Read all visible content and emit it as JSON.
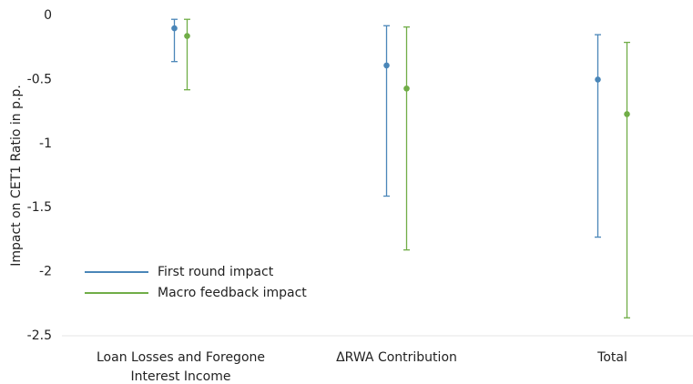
{
  "chart_data": {
    "type": "errorbar",
    "y_label": "Impact on CET1 Ratio in p.p.",
    "categories": [
      "Loan Losses and Foregone Interest Income",
      "ΔRWA Contribution",
      "Total"
    ],
    "series": [
      {
        "name": "First round impact",
        "color": "#4a86b8",
        "values": [
          -0.1,
          -0.39,
          -0.5
        ],
        "low": [
          -0.36,
          -1.41,
          -1.73
        ],
        "high": [
          -0.03,
          -0.08,
          -0.15
        ]
      },
      {
        "name": "Macro feedback impact",
        "color": "#70ad47",
        "values": [
          -0.16,
          -0.57,
          -0.77
        ],
        "low": [
          -0.58,
          -1.83,
          -2.36
        ],
        "high": [
          -0.03,
          -0.09,
          -0.21
        ]
      }
    ],
    "ylim": [
      -2.5,
      0
    ],
    "yticks": [
      0,
      -0.5,
      -1,
      -1.5,
      -2,
      -2.5
    ],
    "legend": "lower-left"
  }
}
